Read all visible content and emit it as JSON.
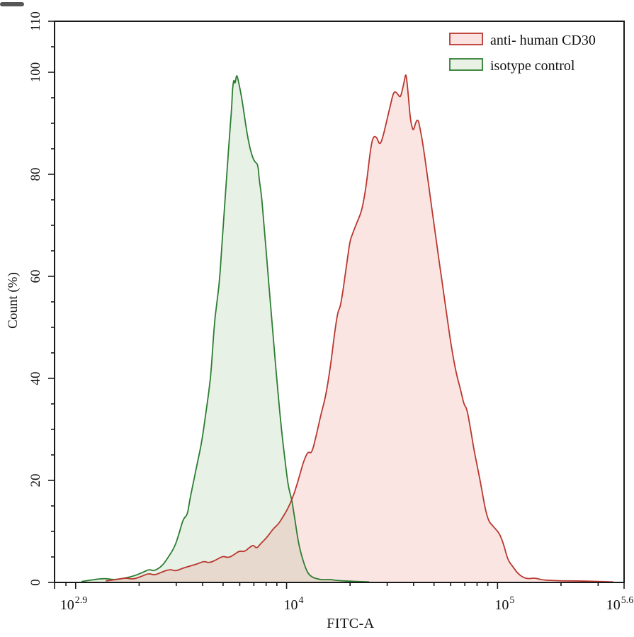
{
  "figure": {
    "background": "#ffffff",
    "frame_color": "#1a1a1a"
  },
  "legend": {
    "items": [
      {
        "label": "anti- human CD30",
        "stroke": "#b9372f",
        "fill": "#fbe3e1"
      },
      {
        "label": "isotype control",
        "stroke": "#2d7d32",
        "fill": "#e9f2e4"
      }
    ]
  },
  "chart_data": {
    "type": "area",
    "title": "",
    "xlabel": "FITC-A",
    "ylabel": "Count (%)",
    "x_scale": "log10",
    "x_range_log": [
      2.9,
      5.6
    ],
    "y_range": [
      0,
      110
    ],
    "grid": false,
    "legend_position": "top-right",
    "x_major_ticks": [
      {
        "log": 2.9,
        "base": "10",
        "exp": "2.9",
        "anchor_dx": 27
      },
      {
        "log": 4.0,
        "base": "10",
        "exp": "4",
        "anchor_dx": 10
      },
      {
        "log": 5.0,
        "base": "10",
        "exp": "5",
        "anchor_dx": 10
      },
      {
        "log": 5.6,
        "base": "10",
        "exp": "5.6",
        "anchor_dx": -6
      }
    ],
    "x_minor_ticks_log": [
      2.954,
      3.0,
      3.301,
      3.477,
      3.602,
      3.699,
      3.778,
      3.845,
      3.903,
      3.954,
      4.301,
      4.477,
      4.602,
      4.699,
      4.778,
      4.845,
      4.903,
      4.954,
      5.301,
      5.477
    ],
    "y_major_ticks": [
      0,
      20,
      40,
      60,
      80,
      100,
      110
    ],
    "y_minor_ticks": [
      5,
      10,
      15,
      25,
      30,
      35,
      45,
      50,
      55,
      65,
      70,
      75,
      85,
      90,
      95,
      105
    ],
    "series": [
      {
        "name": "isotype control",
        "stroke": "#2d7d32",
        "fill": "rgba(120,180,110,0.18)",
        "points": [
          [
            3.03,
            0.2
          ],
          [
            3.09,
            0.6
          ],
          [
            3.14,
            0.8
          ],
          [
            3.18,
            0.5
          ],
          [
            3.23,
            0.8
          ],
          [
            3.28,
            1.3
          ],
          [
            3.32,
            2.0
          ],
          [
            3.35,
            2.6
          ],
          [
            3.37,
            2.2
          ],
          [
            3.41,
            3.2
          ],
          [
            3.44,
            5.0
          ],
          [
            3.47,
            7.0
          ],
          [
            3.49,
            9.5
          ],
          [
            3.51,
            12.5
          ],
          [
            3.53,
            13.2
          ],
          [
            3.54,
            16
          ],
          [
            3.56,
            20
          ],
          [
            3.58,
            24
          ],
          [
            3.6,
            28
          ],
          [
            3.62,
            34
          ],
          [
            3.64,
            40
          ],
          [
            3.65,
            46
          ],
          [
            3.66,
            52
          ],
          [
            3.68,
            58
          ],
          [
            3.69,
            64
          ],
          [
            3.7,
            70
          ],
          [
            3.71,
            76
          ],
          [
            3.72,
            82
          ],
          [
            3.73,
            88
          ],
          [
            3.74,
            93
          ],
          [
            3.743,
            96.5
          ],
          [
            3.75,
            98.8
          ],
          [
            3.756,
            97.5
          ],
          [
            3.763,
            99.8
          ],
          [
            3.773,
            98
          ],
          [
            3.783,
            96
          ],
          [
            3.793,
            93.5
          ],
          [
            3.807,
            89.5
          ],
          [
            3.817,
            87
          ],
          [
            3.827,
            85
          ],
          [
            3.84,
            83.2
          ],
          [
            3.85,
            82.4
          ],
          [
            3.864,
            82
          ],
          [
            3.87,
            79
          ],
          [
            3.881,
            76
          ],
          [
            3.891,
            71
          ],
          [
            3.901,
            66
          ],
          [
            3.911,
            61
          ],
          [
            3.921,
            56
          ],
          [
            3.931,
            51
          ],
          [
            3.941,
            46
          ],
          [
            3.951,
            41
          ],
          [
            3.961,
            36.5
          ],
          [
            3.971,
            32
          ],
          [
            3.981,
            28
          ],
          [
            3.991,
            24.5
          ],
          [
            4.001,
            21
          ],
          [
            4.011,
            18.3
          ],
          [
            4.025,
            16.2
          ],
          [
            4.035,
            13.5
          ],
          [
            4.045,
            10.8
          ],
          [
            4.055,
            8.2
          ],
          [
            4.065,
            6.2
          ],
          [
            4.079,
            4.2
          ],
          [
            4.092,
            2.6
          ],
          [
            4.105,
            1.6
          ],
          [
            4.122,
            1.0
          ],
          [
            4.146,
            0.7
          ],
          [
            4.173,
            0.5
          ],
          [
            4.206,
            0.6
          ],
          [
            4.233,
            0.4
          ],
          [
            4.273,
            0.3
          ],
          [
            4.32,
            0.2
          ],
          [
            4.39,
            0.1
          ]
        ]
      },
      {
        "name": "anti- human CD30",
        "stroke": "#b9372f",
        "fill": "rgba(235,110,100,0.18)",
        "points": [
          [
            3.145,
            0.3
          ],
          [
            3.196,
            0.6
          ],
          [
            3.239,
            0.9
          ],
          [
            3.273,
            0.6
          ],
          [
            3.313,
            1.2
          ],
          [
            3.347,
            1.8
          ],
          [
            3.373,
            1.4
          ],
          [
            3.407,
            2.0
          ],
          [
            3.447,
            2.6
          ],
          [
            3.474,
            2.2
          ],
          [
            3.508,
            2.8
          ],
          [
            3.541,
            3.2
          ],
          [
            3.575,
            3.6
          ],
          [
            3.609,
            4.2
          ],
          [
            3.632,
            3.8
          ],
          [
            3.666,
            4.4
          ],
          [
            3.699,
            5.2
          ],
          [
            3.723,
            4.8
          ],
          [
            3.75,
            5.4
          ],
          [
            3.776,
            6.2
          ],
          [
            3.8,
            6.0
          ],
          [
            3.823,
            6.8
          ],
          [
            3.843,
            7.4
          ],
          [
            3.857,
            6.6
          ],
          [
            3.877,
            7.6
          ],
          [
            3.897,
            8.4
          ],
          [
            3.917,
            9.4
          ],
          [
            3.938,
            10.6
          ],
          [
            3.961,
            11.4
          ],
          [
            3.985,
            13.0
          ],
          [
            4.005,
            14.4
          ],
          [
            4.028,
            16.5
          ],
          [
            4.052,
            19.5
          ],
          [
            4.072,
            22.5
          ],
          [
            4.085,
            24.2
          ],
          [
            4.102,
            25.7
          ],
          [
            4.119,
            25.2
          ],
          [
            4.142,
            29
          ],
          [
            4.163,
            33
          ],
          [
            4.186,
            36.5
          ],
          [
            4.21,
            42.9
          ],
          [
            4.226,
            48.5
          ],
          [
            4.243,
            53.1
          ],
          [
            4.253,
            53.8
          ],
          [
            4.263,
            56
          ],
          [
            4.277,
            60
          ],
          [
            4.287,
            63
          ],
          [
            4.3,
            66.9
          ],
          [
            4.314,
            68.5
          ],
          [
            4.331,
            70.3
          ],
          [
            4.354,
            72.5
          ],
          [
            4.371,
            76
          ],
          [
            4.384,
            80
          ],
          [
            4.398,
            85
          ],
          [
            4.411,
            87.5
          ],
          [
            4.428,
            87.3
          ],
          [
            4.441,
            85.7
          ],
          [
            4.455,
            87
          ],
          [
            4.475,
            90.5
          ],
          [
            4.492,
            93.5
          ],
          [
            4.505,
            95.8
          ],
          [
            4.515,
            96.3
          ],
          [
            4.529,
            95.6
          ],
          [
            4.539,
            95.0
          ],
          [
            4.549,
            96.5
          ],
          [
            4.559,
            98.5
          ],
          [
            4.566,
            100
          ],
          [
            4.576,
            96
          ],
          [
            4.586,
            91
          ],
          [
            4.596,
            89
          ],
          [
            4.602,
            88.6
          ],
          [
            4.613,
            90.3
          ],
          [
            4.623,
            90.8
          ],
          [
            4.633,
            89
          ],
          [
            4.646,
            86
          ],
          [
            4.663,
            81
          ],
          [
            4.683,
            75
          ],
          [
            4.703,
            69
          ],
          [
            4.723,
            63
          ],
          [
            4.744,
            57
          ],
          [
            4.764,
            51
          ],
          [
            4.784,
            45.5
          ],
          [
            4.804,
            41
          ],
          [
            4.824,
            38
          ],
          [
            4.841,
            34.8
          ],
          [
            4.854,
            34.2
          ],
          [
            4.871,
            30.4
          ],
          [
            4.888,
            26
          ],
          [
            4.908,
            22
          ],
          [
            4.925,
            18.3
          ],
          [
            4.941,
            14.5
          ],
          [
            4.958,
            12
          ],
          [
            4.975,
            11.2
          ],
          [
            4.992,
            10.4
          ],
          [
            5.009,
            9.6
          ],
          [
            5.029,
            7.5
          ],
          [
            5.049,
            4.4
          ],
          [
            5.069,
            3.3
          ],
          [
            5.093,
            1.9
          ],
          [
            5.12,
            1.0
          ],
          [
            5.146,
            0.7
          ],
          [
            5.177,
            0.9
          ],
          [
            5.21,
            0.5
          ],
          [
            5.254,
            0.4
          ],
          [
            5.311,
            0.3
          ],
          [
            5.378,
            0.3
          ],
          [
            5.462,
            0.2
          ],
          [
            5.546,
            0.1
          ]
        ]
      }
    ]
  }
}
